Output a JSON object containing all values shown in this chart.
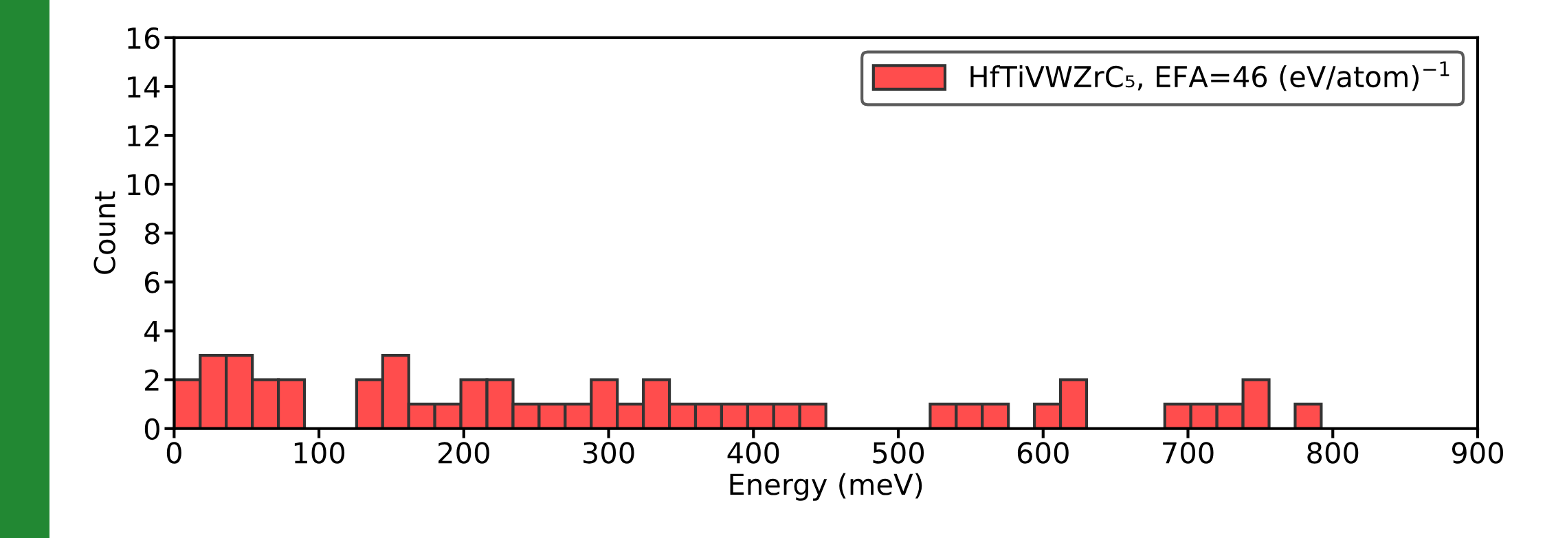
{
  "chart_data": {
    "type": "histogram",
    "xlabel": "Energy (meV)",
    "ylabel": "Count",
    "bins": [
      0,
      18,
      36,
      54,
      72,
      90,
      108,
      126,
      144,
      162,
      180,
      198,
      216,
      234,
      252,
      270,
      288,
      306,
      324,
      342,
      360,
      378,
      396,
      414,
      432,
      450,
      468,
      486,
      504,
      522,
      540,
      558,
      576,
      594,
      612,
      630,
      648,
      666,
      684,
      702,
      720,
      738,
      756,
      774,
      792
    ],
    "series": [
      {
        "name": "HfTiVWZrC₅, EFA=46 (eV/atom)$^{−1}$",
        "color": "#ff4d4d",
        "values": [
          2,
          3,
          3,
          2,
          2,
          0,
          0,
          2,
          3,
          1,
          1,
          2,
          2,
          1,
          1,
          1,
          2,
          1,
          2,
          1,
          1,
          1,
          1,
          1,
          1,
          0,
          0,
          0,
          0,
          1,
          1,
          1,
          0,
          1,
          2,
          0,
          0,
          0,
          1,
          1,
          1,
          2,
          0,
          1
        ]
      }
    ],
    "xlim": [
      0,
      900
    ],
    "xticks": [
      0,
      100,
      200,
      300,
      400,
      500,
      600,
      700,
      800,
      900
    ],
    "ylim": [
      0,
      16
    ],
    "yticks": [
      0,
      2,
      4,
      6,
      8,
      10,
      12,
      14,
      16
    ],
    "grid": false,
    "legend": "top right"
  }
}
